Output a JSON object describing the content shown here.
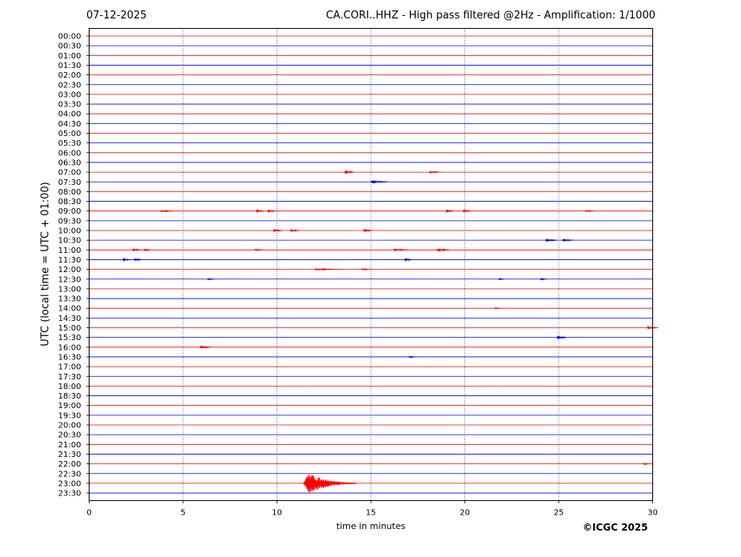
{
  "header": {
    "date": "07-12-2025",
    "title": "CA.CORI..HHZ - High pass filtered @2Hz - Amplification: 1/1000"
  },
  "footer": {
    "copyright": "©ICGC 2025"
  },
  "chart_data": {
    "type": "line",
    "title": "CA.CORI..HHZ - High pass filtered @2Hz - Amplification: 1/1000",
    "xlabel": "time in minutes",
    "ylabel": "UTC (local time = UTC + 01:00)",
    "xlim": [
      0,
      30
    ],
    "x_ticks": [
      "0",
      "5",
      "10",
      "15",
      "20",
      "25",
      "30"
    ],
    "x_tick_values": [
      0,
      5,
      10,
      15,
      20,
      25,
      30
    ],
    "grid": "vertical dotted lines at x ticks",
    "trace_colors": [
      "#ff0000",
      "#0000ff"
    ],
    "rows": [
      "00:00",
      "00:30",
      "01:00",
      "01:30",
      "02:00",
      "02:30",
      "03:00",
      "03:30",
      "04:00",
      "04:30",
      "05:00",
      "05:30",
      "06:00",
      "06:30",
      "07:00",
      "07:30",
      "08:00",
      "08:30",
      "09:00",
      "09:30",
      "10:00",
      "10:30",
      "11:00",
      "11:30",
      "12:00",
      "12:30",
      "13:00",
      "13:30",
      "14:00",
      "14:30",
      "15:00",
      "15:30",
      "16:00",
      "16:30",
      "17:00",
      "17:30",
      "18:00",
      "18:30",
      "19:00",
      "19:30",
      "20:00",
      "20:30",
      "21:00",
      "21:30",
      "22:00",
      "22:30",
      "23:00",
      "23:30"
    ],
    "events": [
      {
        "row": "07:00",
        "t": 13.6,
        "amp": 3.5,
        "dur": 0.5
      },
      {
        "row": "07:00",
        "t": 18.1,
        "amp": 2,
        "dur": 0.6
      },
      {
        "row": "07:30",
        "t": 15.0,
        "amp": 2.5,
        "dur": 0.9
      },
      {
        "row": "09:00",
        "t": 3.8,
        "amp": 1.5,
        "dur": 0.7
      },
      {
        "row": "09:00",
        "t": 8.9,
        "amp": 2.5,
        "dur": 0.4
      },
      {
        "row": "09:00",
        "t": 9.5,
        "amp": 2.5,
        "dur": 0.4
      },
      {
        "row": "09:00",
        "t": 19.0,
        "amp": 2.5,
        "dur": 0.4
      },
      {
        "row": "09:00",
        "t": 19.9,
        "amp": 2.5,
        "dur": 0.4
      },
      {
        "row": "09:00",
        "t": 26.4,
        "amp": 1.5,
        "dur": 0.5
      },
      {
        "row": "10:00",
        "t": 9.8,
        "amp": 2.5,
        "dur": 0.5
      },
      {
        "row": "10:00",
        "t": 10.7,
        "amp": 2.5,
        "dur": 0.5
      },
      {
        "row": "10:00",
        "t": 14.6,
        "amp": 2.5,
        "dur": 0.5
      },
      {
        "row": "10:30",
        "t": 24.3,
        "amp": 2.5,
        "dur": 0.6
      },
      {
        "row": "10:30",
        "t": 25.2,
        "amp": 2,
        "dur": 0.6
      },
      {
        "row": "11:00",
        "t": 2.3,
        "amp": 2,
        "dur": 0.5
      },
      {
        "row": "11:00",
        "t": 2.9,
        "amp": 2,
        "dur": 0.4
      },
      {
        "row": "11:00",
        "t": 8.8,
        "amp": 1.2,
        "dur": 0.5
      },
      {
        "row": "11:00",
        "t": 16.2,
        "amp": 2,
        "dur": 0.8
      },
      {
        "row": "11:00",
        "t": 18.5,
        "amp": 2.5,
        "dur": 0.7
      },
      {
        "row": "11:30",
        "t": 1.8,
        "amp": 2.5,
        "dur": 0.4
      },
      {
        "row": "11:30",
        "t": 2.4,
        "amp": 2.5,
        "dur": 0.4
      },
      {
        "row": "11:30",
        "t": 16.8,
        "amp": 2.5,
        "dur": 0.4
      },
      {
        "row": "12:00",
        "t": 12.0,
        "amp": 1.2,
        "dur": 1.5
      },
      {
        "row": "12:00",
        "t": 14.5,
        "amp": 1.5,
        "dur": 0.5
      },
      {
        "row": "12:30",
        "t": 6.3,
        "amp": 1.2,
        "dur": 0.4
      },
      {
        "row": "12:30",
        "t": 21.8,
        "amp": 1.2,
        "dur": 0.3
      },
      {
        "row": "12:30",
        "t": 24.0,
        "amp": 1.2,
        "dur": 0.4
      },
      {
        "row": "14:00",
        "t": 21.6,
        "amp": 1,
        "dur": 0.3
      },
      {
        "row": "15:00",
        "t": 29.7,
        "amp": 2,
        "dur": 0.6
      },
      {
        "row": "15:30",
        "t": 24.9,
        "amp": 3,
        "dur": 0.5
      },
      {
        "row": "16:00",
        "t": 5.9,
        "amp": 2.5,
        "dur": 0.6
      },
      {
        "row": "16:30",
        "t": 17.0,
        "amp": 1,
        "dur": 0.5
      },
      {
        "row": "22:00",
        "t": 29.5,
        "amp": 1,
        "dur": 0.4
      },
      {
        "row": "23:00",
        "t": 11.4,
        "amp": 14,
        "dur": 2.8
      }
    ]
  }
}
